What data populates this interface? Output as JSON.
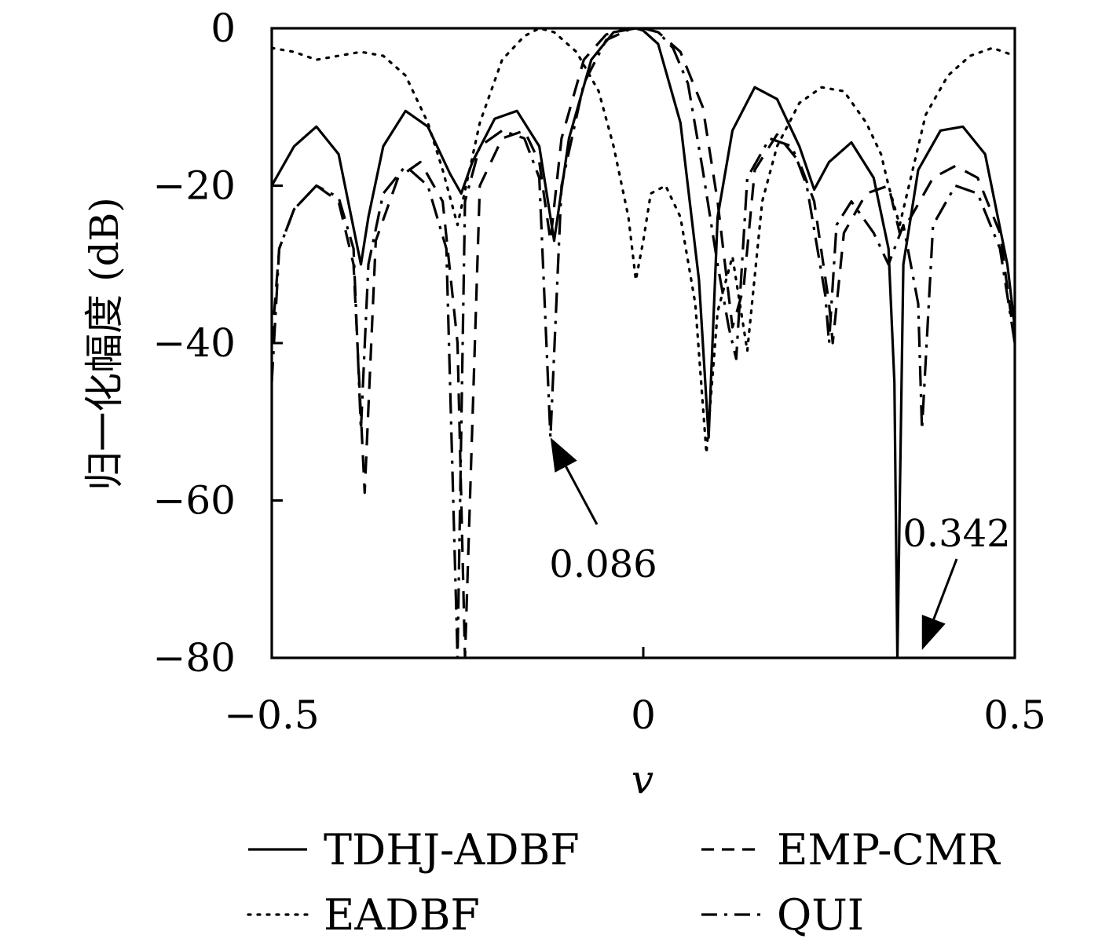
{
  "chart_data": {
    "type": "line",
    "xlabel": "v",
    "ylabel": "归一化幅度 (dB)",
    "xlim": [
      -0.5,
      0.5
    ],
    "ylim": [
      -80,
      0
    ],
    "xticks": [
      -0.5,
      0,
      0.5
    ],
    "xtick_labels": [
      "−0.5",
      "0",
      "0.5"
    ],
    "yticks": [
      0,
      -20,
      -40,
      -60,
      -80
    ],
    "ytick_labels": [
      "0",
      "−20",
      "−40",
      "−60",
      "−80"
    ],
    "grid": false,
    "legend_position": "bottom",
    "series": [
      {
        "name": "TDHJ-ADBF",
        "style": "solid",
        "color": "#000000",
        "x": [
          -0.5,
          -0.47,
          -0.44,
          -0.41,
          -0.38,
          -0.37,
          -0.35,
          -0.32,
          -0.29,
          -0.26,
          -0.245,
          -0.23,
          -0.2,
          -0.17,
          -0.14,
          -0.12,
          -0.1,
          -0.07,
          -0.04,
          -0.01,
          0.0,
          0.02,
          0.05,
          0.075,
          0.088,
          0.1,
          0.12,
          0.15,
          0.18,
          0.21,
          0.23,
          0.25,
          0.28,
          0.31,
          0.33,
          0.338,
          0.342,
          0.35,
          0.37,
          0.4,
          0.43,
          0.46,
          0.49,
          0.5
        ],
        "y": [
          -20,
          -15,
          -12.5,
          -16,
          -30,
          -24,
          -15,
          -10.5,
          -12.5,
          -18.5,
          -21,
          -17,
          -11.5,
          -10.5,
          -15,
          -27,
          -14,
          -4,
          -0.5,
          0,
          -0.3,
          -2,
          -12,
          -32,
          -52,
          -24,
          -13,
          -7.5,
          -9,
          -15,
          -20.5,
          -17,
          -14.5,
          -19,
          -28,
          -45,
          -80,
          -30,
          -18,
          -13,
          -12.5,
          -16,
          -30,
          -38
        ]
      },
      {
        "name": "EMP-CMR",
        "style": "dashed",
        "color": "#000000",
        "x": [
          -0.5,
          -0.49,
          -0.47,
          -0.44,
          -0.41,
          -0.39,
          -0.375,
          -0.36,
          -0.33,
          -0.3,
          -0.27,
          -0.25,
          -0.24,
          -0.22,
          -0.19,
          -0.16,
          -0.14,
          -0.125,
          -0.11,
          -0.08,
          -0.05,
          -0.02,
          0.0,
          0.02,
          0.05,
          0.08,
          0.1,
          0.12,
          0.135,
          0.15,
          0.18,
          0.21,
          0.23,
          0.25,
          0.255,
          0.27,
          0.3,
          0.33,
          0.345,
          0.36,
          0.39,
          0.42,
          0.45,
          0.48,
          0.5
        ],
        "y": [
          -40,
          -28,
          -23,
          -20,
          -22,
          -30,
          -59,
          -27,
          -19,
          -17,
          -22,
          -40,
          -80,
          -20,
          -14,
          -13,
          -17,
          -27,
          -14,
          -4,
          -0.8,
          0,
          0,
          -0.5,
          -3,
          -10,
          -22,
          -38,
          -33,
          -18,
          -13.5,
          -17,
          -22,
          -35,
          -40,
          -26,
          -21,
          -20,
          -26,
          -24,
          -19,
          -17.5,
          -19,
          -26,
          -40
        ]
      },
      {
        "name": "EADBF",
        "style": "dotted",
        "color": "#000000",
        "x": [
          -0.5,
          -0.47,
          -0.44,
          -0.41,
          -0.38,
          -0.35,
          -0.32,
          -0.29,
          -0.27,
          -0.25,
          -0.22,
          -0.19,
          -0.16,
          -0.14,
          -0.12,
          -0.09,
          -0.06,
          -0.04,
          -0.02,
          -0.01,
          0.0,
          0.01,
          0.03,
          0.05,
          0.07,
          0.085,
          0.1,
          0.12,
          0.14,
          0.16,
          0.18,
          0.21,
          0.24,
          0.27,
          0.3,
          0.32,
          0.33,
          0.345,
          0.36,
          0.38,
          0.41,
          0.44,
          0.47,
          0.5
        ],
        "y": [
          -2.5,
          -3,
          -4,
          -3.5,
          -3,
          -3.5,
          -6,
          -12,
          -18,
          -25,
          -12,
          -4,
          -1,
          0,
          -0.5,
          -3,
          -8,
          -15,
          -24,
          -32,
          -27,
          -21,
          -20,
          -24,
          -35,
          -54,
          -36,
          -29,
          -41,
          -22,
          -15,
          -9.5,
          -7.5,
          -8,
          -12,
          -16,
          -20,
          -25,
          -19,
          -11,
          -6,
          -3.5,
          -2.5,
          -3.5
        ]
      },
      {
        "name": "QUI",
        "style": "dashdot",
        "color": "#000000",
        "x": [
          -0.5,
          -0.49,
          -0.47,
          -0.44,
          -0.41,
          -0.39,
          -0.38,
          -0.37,
          -0.35,
          -0.32,
          -0.29,
          -0.265,
          -0.25,
          -0.24,
          -0.22,
          -0.19,
          -0.16,
          -0.14,
          -0.125,
          -0.11,
          -0.08,
          -0.05,
          -0.02,
          0.0,
          0.02,
          0.04,
          0.06,
          0.08,
          0.1,
          0.115,
          0.125,
          0.14,
          0.17,
          0.2,
          0.22,
          0.245,
          0.25,
          0.26,
          0.28,
          0.31,
          0.33,
          0.35,
          0.37,
          0.375,
          0.39,
          0.42,
          0.45,
          0.48,
          0.5
        ],
        "y": [
          -45,
          -28,
          -23,
          -20,
          -21.5,
          -28,
          -51,
          -30,
          -21,
          -17.5,
          -20,
          -28,
          -80,
          -22,
          -15,
          -13,
          -14,
          -19,
          -52,
          -20,
          -7,
          -1.5,
          -0.2,
          0,
          -0.5,
          -2.5,
          -7,
          -18,
          -30,
          -38,
          -42,
          -19,
          -14,
          -15,
          -20,
          -34,
          -40,
          -25,
          -22,
          -26,
          -30,
          -25,
          -35,
          -51,
          -25,
          -20,
          -21,
          -28,
          -40
        ]
      }
    ],
    "annotations": [
      {
        "text": "0.086",
        "arrow_x": -0.125,
        "arrow_y": -52
      },
      {
        "text": "0.342",
        "arrow_x": 0.375,
        "arrow_y": -79
      }
    ]
  }
}
